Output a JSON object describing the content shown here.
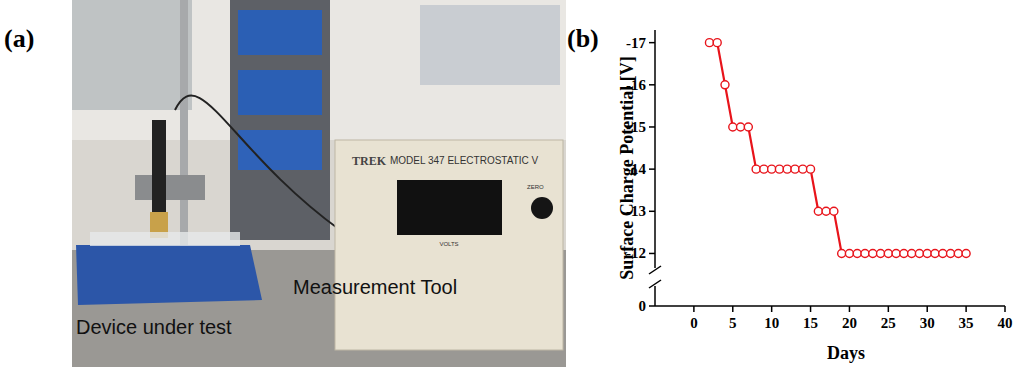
{
  "chart_data": {
    "type": "line",
    "panel_label": "(b)",
    "x_label": "Days",
    "y_label": "Surface Charge Potential [V]",
    "x": [
      2,
      3,
      4,
      5,
      6,
      7,
      8,
      9,
      10,
      11,
      12,
      13,
      14,
      15,
      16,
      17,
      18,
      19,
      20,
      21,
      22,
      23,
      24,
      25,
      26,
      27,
      28,
      29,
      30,
      31,
      32,
      33,
      34,
      35
    ],
    "values": [
      -17,
      -17,
      -16,
      -15,
      -15,
      -15,
      -14,
      -14,
      -14,
      -14,
      -14,
      -14,
      -14,
      -14,
      -13,
      -13,
      -13,
      -12,
      -12,
      -12,
      -12,
      -12,
      -12,
      -12,
      -12,
      -12,
      -12,
      -12,
      -12,
      -12,
      -12,
      -12,
      -12,
      -12
    ],
    "color": "#e8141b",
    "marker": "open-circle",
    "line_style": "solid",
    "xlim": [
      -5,
      40
    ],
    "xticks": [
      0,
      5,
      10,
      15,
      20,
      25,
      30,
      35,
      40
    ],
    "ylim": [
      0,
      -17.3
    ],
    "ybreak": [
      -0.4,
      -11.75
    ],
    "yticks": [
      0,
      -12,
      -13,
      -14,
      -15,
      -16,
      -17
    ]
  },
  "photo": {
    "panel_label": "(a)",
    "labels": [
      "Measurement Tool",
      "Device under test"
    ],
    "instrument": {
      "brand": "TREK",
      "model": "MODEL 347  ELECTROSTATIC V",
      "display": "VOLTS",
      "knob": "ZERO"
    }
  }
}
